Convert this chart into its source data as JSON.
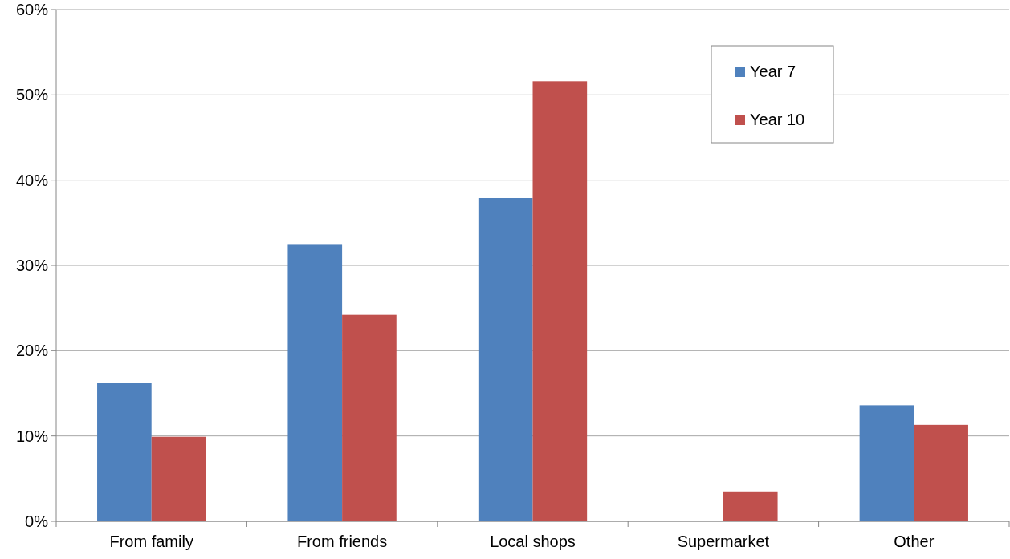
{
  "chart_data": {
    "type": "bar",
    "categories": [
      "From family",
      "From friends",
      "Local shops",
      "Supermarket",
      "Other"
    ],
    "series": [
      {
        "name": "Year 7",
        "color": "#4f81bd",
        "values": [
          16.2,
          32.5,
          37.9,
          0,
          13.6
        ]
      },
      {
        "name": "Year 10",
        "color": "#c0504d",
        "values": [
          9.9,
          24.2,
          51.6,
          3.5,
          11.3
        ]
      }
    ],
    "ylim": [
      0,
      60
    ],
    "yticks": [
      {
        "value": 0,
        "label": "0%"
      },
      {
        "value": 10,
        "label": "10%"
      },
      {
        "value": 20,
        "label": "20%"
      },
      {
        "value": 30,
        "label": "30%"
      },
      {
        "value": 40,
        "label": "40%"
      },
      {
        "value": 50,
        "label": "50%"
      },
      {
        "value": 60,
        "label": "60%"
      }
    ],
    "grid": "y",
    "legend": "top right"
  }
}
